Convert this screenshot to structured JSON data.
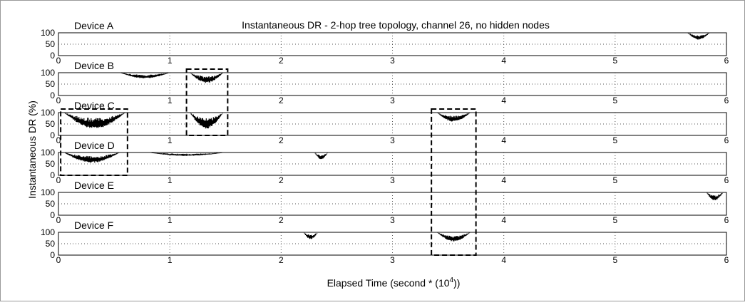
{
  "chart_data": {
    "type": "line",
    "title": "Instantaneous DR - 2-hop tree topology, channel 26, no hidden nodes",
    "xlabel": "Elapsed Time (second * (10",
    "xlabel_exponent": "4",
    "xlabel_suffix": "))",
    "ylabel": "Instantaneous DR (%)",
    "xlim": [
      0,
      6
    ],
    "ylim": [
      0,
      100
    ],
    "x_ticks": [
      "0",
      "1",
      "2",
      "3",
      "4",
      "5",
      "6"
    ],
    "y_ticks": [
      "0",
      "50",
      "100"
    ],
    "grid": true,
    "line_color": "#000000",
    "series": [
      {
        "name": "Device A",
        "dips": [
          {
            "start": 5.65,
            "end": 5.85,
            "min": 70
          }
        ]
      },
      {
        "name": "Device B",
        "dips": [
          {
            "start": 0.55,
            "end": 1.0,
            "min": 75
          },
          {
            "start": 1.18,
            "end": 1.48,
            "min": 55
          }
        ]
      },
      {
        "name": "Device C",
        "dips": [
          {
            "start": 0.05,
            "end": 0.6,
            "min": 30
          },
          {
            "start": 1.18,
            "end": 1.48,
            "min": 30
          },
          {
            "start": 3.4,
            "end": 3.7,
            "min": 60
          }
        ]
      },
      {
        "name": "Device D",
        "dips": [
          {
            "start": 0.05,
            "end": 0.55,
            "min": 55
          },
          {
            "start": 0.8,
            "end": 1.5,
            "min": 85
          },
          {
            "start": 2.3,
            "end": 2.42,
            "min": 70
          }
        ]
      },
      {
        "name": "Device E",
        "dips": [
          {
            "start": 5.82,
            "end": 5.97,
            "min": 65
          }
        ]
      },
      {
        "name": "Device F",
        "dips": [
          {
            "start": 2.2,
            "end": 2.33,
            "min": 70
          },
          {
            "start": 3.4,
            "end": 3.7,
            "min": 60
          }
        ]
      }
    ],
    "highlight_boxes": [
      {
        "x_start": 1.15,
        "x_end": 1.52,
        "devices": [
          "Device B",
          "Device C"
        ]
      },
      {
        "x_start": 0.02,
        "x_end": 0.62,
        "devices": [
          "Device C",
          "Device D"
        ]
      },
      {
        "x_start": 3.35,
        "x_end": 3.75,
        "devices": [
          "Device C",
          "Device D",
          "Device E",
          "Device F"
        ]
      }
    ]
  }
}
